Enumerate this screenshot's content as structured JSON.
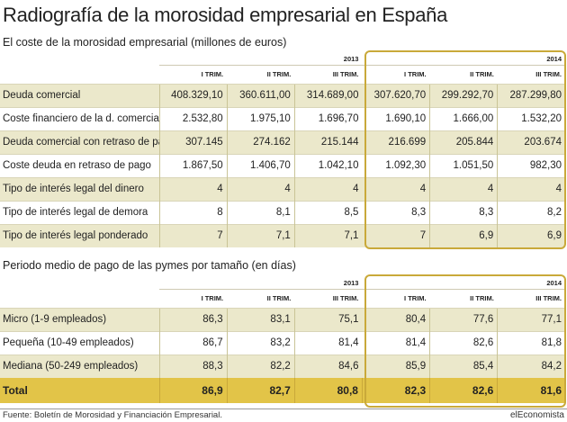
{
  "title": "Radiografía de la morosidad empresarial en España",
  "table1": {
    "subtitle": "El coste de la morosidad empresarial (millones de euros)",
    "years": [
      "2013",
      "2014"
    ],
    "quarters": [
      "I TRIM.",
      "II TRIM.",
      "III TRIM.",
      "I TRIM.",
      "II TRIM.",
      "III TRIM."
    ],
    "rows": [
      {
        "label": "Deuda comercial",
        "values": [
          "408.329,10",
          "360.611,00",
          "314.689,00",
          "307.620,70",
          "299.292,70",
          "287.299,80"
        ]
      },
      {
        "label": "Coste financiero de la d. comercial",
        "values": [
          "2.532,80",
          "1.975,10",
          "1.696,70",
          "1.690,10",
          "1.666,00",
          "1.532,20"
        ]
      },
      {
        "label": "Deuda comercial con retraso de pago",
        "values": [
          "307.145",
          "274.162",
          "215.144",
          "216.699",
          "205.844",
          "203.674"
        ]
      },
      {
        "label": "Coste deuda en retraso de pago",
        "values": [
          "1.867,50",
          "1.406,70",
          "1.042,10",
          "1.092,30",
          "1.051,50",
          "982,30"
        ]
      },
      {
        "label": "Tipo de interés legal del dinero",
        "values": [
          "4",
          "4",
          "4",
          "4",
          "4",
          "4"
        ]
      },
      {
        "label": "Tipo de interés legal de demora",
        "values": [
          "8",
          "8,1",
          "8,5",
          "8,3",
          "8,3",
          "8,2"
        ]
      },
      {
        "label": "Tipo de interés legal ponderado",
        "values": [
          "7",
          "7,1",
          "7,1",
          "7",
          "6,9",
          "6,9"
        ]
      }
    ]
  },
  "table2": {
    "subtitle": "Periodo medio de pago de las pymes por tamaño (en días)",
    "years": [
      "2013",
      "2014"
    ],
    "quarters": [
      "I TRIM.",
      "II TRIM.",
      "III TRIM.",
      "I TRIM.",
      "II TRIM.",
      "III TRIM."
    ],
    "rows": [
      {
        "label": "Micro (1-9 empleados)",
        "values": [
          "86,3",
          "83,1",
          "75,1",
          "80,4",
          "77,6",
          "77,1"
        ]
      },
      {
        "label": "Pequeña (10-49 empleados)",
        "values": [
          "86,7",
          "83,2",
          "81,4",
          "81,4",
          "82,6",
          "81,8"
        ]
      },
      {
        "label": "Mediana (50-249 empleados)",
        "values": [
          "88,3",
          "82,2",
          "84,6",
          "85,9",
          "85,4",
          "84,2"
        ]
      }
    ],
    "total": {
      "label": "Total",
      "values": [
        "86,9",
        "82,7",
        "80,8",
        "82,3",
        "82,6",
        "81,6"
      ]
    }
  },
  "footer": {
    "source": "Fuente: Boletín de Morosidad y Financiación Empresarial.",
    "brand": "elEconomista"
  },
  "colors": {
    "shade_row": "#ebe8cb",
    "total_row": "#e2c448",
    "highlight_border": "#c9a93a"
  }
}
